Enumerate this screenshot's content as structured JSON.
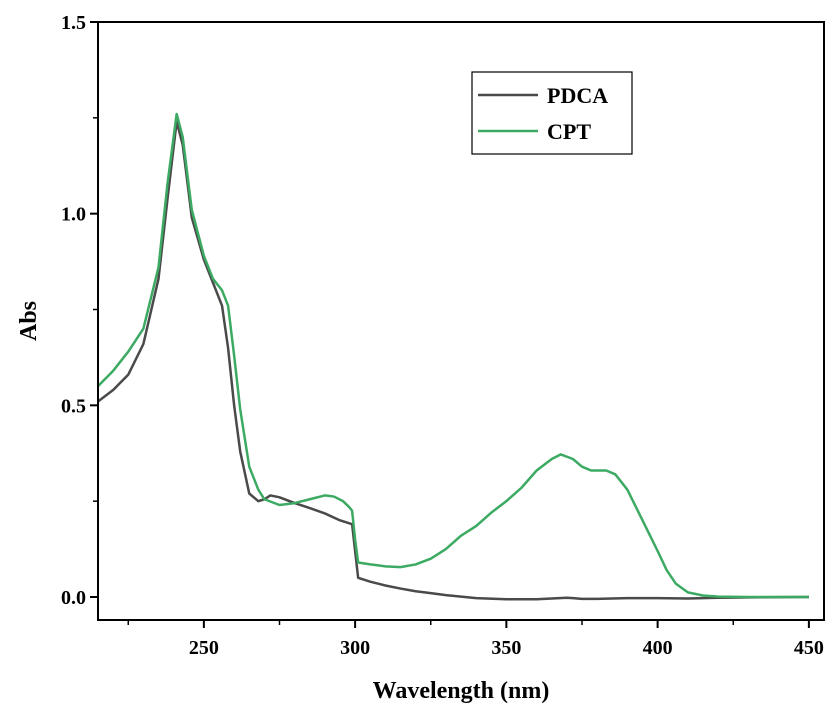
{
  "chart_data": {
    "type": "line",
    "xlabel": "Wavelength (nm)",
    "ylabel": "Abs",
    "xlim": [
      215,
      455
    ],
    "ylim": [
      -0.06,
      1.5
    ],
    "x_ticks": [
      250,
      300,
      350,
      400,
      450
    ],
    "x_tick_labels": [
      "250",
      "300",
      "350",
      "400",
      "450"
    ],
    "y_ticks": [
      0.0,
      0.5,
      1.0,
      1.5
    ],
    "y_tick_labels": [
      "0.0",
      "0.5",
      "1.0",
      "1.5"
    ],
    "grid": false,
    "legend_position": "top-right",
    "series": [
      {
        "name": "PDCA",
        "color": "#4a4a4a",
        "x": [
          215,
          220,
          225,
          230,
          235,
          238,
          241,
          243,
          246,
          250,
          253,
          256,
          258,
          260,
          262,
          265,
          268,
          270,
          272,
          275,
          280,
          285,
          290,
          295,
          299,
          300,
          301,
          305,
          310,
          315,
          320,
          325,
          330,
          340,
          350,
          360,
          365,
          370,
          372,
          375,
          380,
          385,
          390,
          400,
          410,
          420,
          430,
          450
        ],
        "y": [
          0.51,
          0.54,
          0.58,
          0.66,
          0.83,
          1.04,
          1.24,
          1.18,
          0.99,
          0.88,
          0.82,
          0.76,
          0.65,
          0.5,
          0.38,
          0.27,
          0.25,
          0.255,
          0.265,
          0.26,
          0.245,
          0.232,
          0.218,
          0.2,
          0.19,
          0.12,
          0.05,
          0.04,
          0.03,
          0.022,
          0.015,
          0.01,
          0.005,
          -0.003,
          -0.006,
          -0.006,
          -0.004,
          -0.002,
          -0.003,
          -0.005,
          -0.005,
          -0.004,
          -0.003,
          -0.003,
          -0.004,
          -0.002,
          -0.001,
          0.0
        ]
      },
      {
        "name": "CPT",
        "color": "#3daa63",
        "x": [
          215,
          220,
          225,
          230,
          235,
          238,
          241,
          243,
          246,
          250,
          253,
          256,
          258,
          260,
          262,
          265,
          268,
          270,
          275,
          280,
          285,
          290,
          293,
          296,
          298,
          299,
          300,
          301,
          305,
          310,
          315,
          320,
          325,
          330,
          335,
          340,
          345,
          350,
          355,
          360,
          365,
          368,
          372,
          375,
          378,
          380,
          383,
          386,
          390,
          395,
          400,
          403,
          406,
          410,
          415,
          420,
          430,
          450
        ],
        "y": [
          0.55,
          0.59,
          0.64,
          0.7,
          0.86,
          1.08,
          1.26,
          1.2,
          1.01,
          0.89,
          0.83,
          0.8,
          0.76,
          0.63,
          0.49,
          0.34,
          0.28,
          0.255,
          0.24,
          0.245,
          0.255,
          0.265,
          0.262,
          0.25,
          0.235,
          0.225,
          0.15,
          0.09,
          0.085,
          0.08,
          0.078,
          0.085,
          0.1,
          0.125,
          0.16,
          0.185,
          0.22,
          0.25,
          0.285,
          0.33,
          0.36,
          0.372,
          0.36,
          0.34,
          0.33,
          0.33,
          0.33,
          0.32,
          0.28,
          0.2,
          0.12,
          0.07,
          0.035,
          0.012,
          0.004,
          0.001,
          0.0,
          0.0
        ]
      }
    ]
  }
}
